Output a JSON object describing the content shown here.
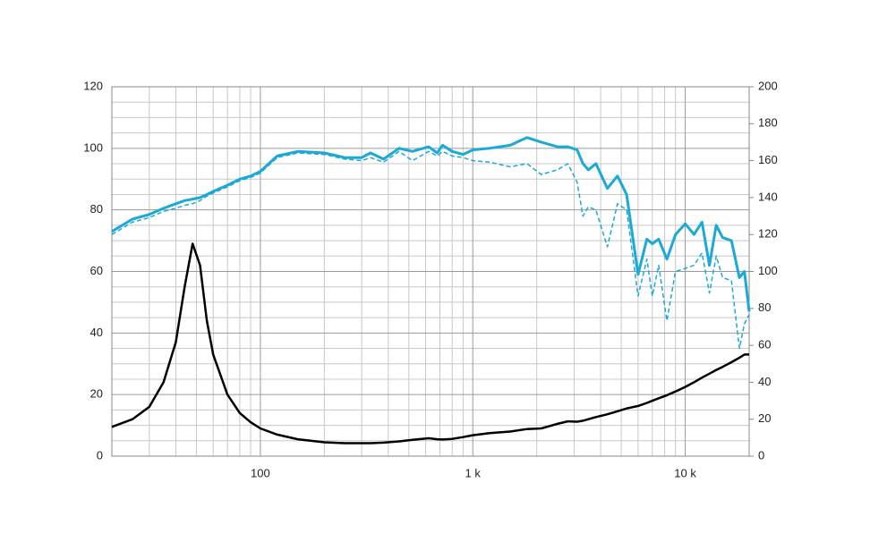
{
  "chart_data": {
    "type": "line",
    "xscale": "log",
    "grid": true,
    "xlim": [
      20,
      20000
    ],
    "xticks": [
      100,
      {
        "value": 1000,
        "label": "1 k"
      },
      {
        "value": 10000,
        "label": "10 k"
      }
    ],
    "xminor": [
      30,
      40,
      50,
      60,
      70,
      80,
      90,
      200,
      300,
      400,
      500,
      600,
      700,
      800,
      900,
      2000,
      3000,
      4000,
      5000,
      6000,
      7000,
      8000,
      9000
    ],
    "ylim": [
      0,
      120
    ],
    "yticks": [
      0,
      20,
      40,
      60,
      80,
      100,
      120
    ],
    "yminor": [
      5,
      10,
      15,
      25,
      30,
      35,
      45,
      50,
      55,
      65,
      70,
      75,
      85,
      90,
      95,
      105,
      110,
      115
    ],
    "y2lim": [
      0,
      200
    ],
    "y2ticks": [
      0,
      20,
      40,
      60,
      80,
      100,
      120,
      140,
      160,
      180,
      200
    ],
    "x": [
      20,
      25,
      30,
      35,
      40,
      44,
      48,
      52,
      56,
      60,
      70,
      80,
      90,
      100,
      120,
      150,
      200,
      250,
      300,
      330,
      380,
      450,
      520,
      620,
      680,
      720,
      800,
      900,
      1000,
      1200,
      1500,
      1800,
      2100,
      2500,
      2800,
      3100,
      3300,
      3500,
      3800,
      4300,
      4800,
      5300,
      6000,
      6600,
      7000,
      7500,
      8200,
      9000,
      10000,
      11000,
      12000,
      13000,
      14000,
      15000,
      16500,
      18000,
      19000,
      20000
    ],
    "series": [
      {
        "color": "#1ba9d6",
        "linestyle": "solid",
        "width": 3,
        "axis": "y",
        "values": [
          73,
          77,
          78.5,
          80.5,
          82,
          83,
          83.5,
          84,
          85,
          86,
          88,
          90,
          91,
          92.5,
          97.5,
          99,
          98.5,
          97,
          97,
          98.5,
          96.5,
          100,
          99,
          100.5,
          98.5,
          101,
          99,
          98,
          99.5,
          100,
          101,
          103.5,
          102,
          100.5,
          100.5,
          99.5,
          95,
          93,
          95,
          87,
          91,
          85,
          59,
          70.5,
          69,
          70.5,
          64,
          72,
          75.5,
          72,
          76,
          62,
          75,
          71,
          70,
          58,
          60,
          47
        ]
      },
      {
        "color": "#1ba9d6",
        "linestyle": "dashed",
        "width": 1.5,
        "axis": "y",
        "values": [
          72,
          76,
          77.5,
          79.5,
          80.5,
          81.5,
          82,
          83,
          84.5,
          85.5,
          87.5,
          89.5,
          90.5,
          92,
          97,
          98.5,
          98,
          96.5,
          96,
          97,
          95.5,
          99,
          96,
          99,
          97.5,
          99,
          97.5,
          97,
          96,
          95.5,
          94,
          95,
          91.5,
          93,
          95,
          89,
          78,
          81,
          80,
          68,
          82,
          80,
          52,
          64,
          52,
          62,
          44,
          60,
          61,
          62,
          66,
          53,
          65,
          58,
          57,
          35,
          43,
          46
        ]
      },
      {
        "color": "#000000",
        "linestyle": "solid",
        "width": 2.5,
        "axis": "y",
        "values": [
          9.5,
          12,
          16,
          24,
          37,
          55,
          69,
          62,
          44,
          33,
          20,
          14,
          11,
          9,
          7,
          5.5,
          4.5,
          4.2,
          4.2,
          4.2,
          4.4,
          4.8,
          5.3,
          5.8,
          5.5,
          5.4,
          5.6,
          6.2,
          6.8,
          7.5,
          8,
          8.8,
          9,
          10.5,
          11.3,
          11.2,
          11.5,
          12,
          12.7,
          13.6,
          14.6,
          15.5,
          16.3,
          17.3,
          18,
          18.8,
          19.8,
          21,
          22.5,
          24,
          25.5,
          26.8,
          28,
          29,
          30.5,
          32,
          33,
          33
        ]
      }
    ]
  }
}
